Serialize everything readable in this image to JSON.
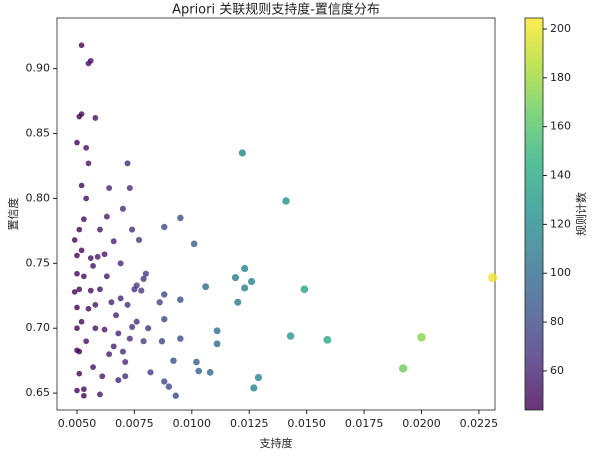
{
  "chart_data": {
    "type": "scatter",
    "title": "Apriori 关联规则支持度-置信度分布",
    "x_label": "支持度",
    "y_label": "置信度",
    "colorbar_label": "规则计数",
    "colormap": "viridis",
    "xlim": [
      0.00413,
      0.0232
    ],
    "ylim": [
      0.637,
      0.939
    ],
    "clim": [
      44,
      204.5
    ],
    "xticks": [
      {
        "value": 0.005,
        "label": "0.0050"
      },
      {
        "value": 0.0075,
        "label": "0.0075"
      },
      {
        "value": 0.01,
        "label": "0.0100"
      },
      {
        "value": 0.0125,
        "label": "0.0125"
      },
      {
        "value": 0.015,
        "label": "0.0150"
      },
      {
        "value": 0.0175,
        "label": "0.0175"
      },
      {
        "value": 0.02,
        "label": "0.0200"
      },
      {
        "value": 0.0225,
        "label": "0.0225"
      }
    ],
    "yticks": [
      {
        "value": 0.65,
        "label": "0.65"
      },
      {
        "value": 0.7,
        "label": "0.70"
      },
      {
        "value": 0.75,
        "label": "0.75"
      },
      {
        "value": 0.8,
        "label": "0.80"
      },
      {
        "value": 0.85,
        "label": "0.85"
      },
      {
        "value": 0.9,
        "label": "0.90"
      }
    ],
    "cticks": [
      60,
      80,
      100,
      120,
      140,
      160,
      180,
      200
    ],
    "x": [
      0.0231,
      0.02,
      0.0192,
      0.0159,
      0.0149,
      0.0143,
      0.0141,
      0.0129,
      0.0127,
      0.0126,
      0.0123,
      0.0122,
      0.0123,
      0.012,
      0.0119,
      0.0111,
      0.0111,
      0.0108,
      0.0106,
      0.0103,
      0.0102,
      0.0101,
      0.0095,
      0.0095,
      0.0095,
      0.0093,
      0.0092,
      0.009,
      0.0088,
      0.0088,
      0.0088,
      0.0087,
      0.0088,
      0.0086,
      0.0082,
      0.008,
      0.0079,
      0.0079,
      0.0078,
      0.0077,
      0.0076,
      0.0076,
      0.0075,
      0.0074,
      0.0073,
      0.0073,
      0.0072,
      0.0072,
      0.0071,
      0.007,
      0.007,
      0.0069,
      0.0068,
      0.0068,
      0.0067,
      0.0066,
      0.0065,
      0.0064,
      0.0064,
      0.0063,
      0.0063,
      0.0062,
      0.0061,
      0.006,
      0.006,
      0.0059,
      0.0058,
      0.0058,
      0.0057,
      0.0057,
      0.0056,
      0.0056,
      0.0056,
      0.0055,
      0.0055,
      0.0055,
      0.0054,
      0.0054,
      0.0054,
      0.0053,
      0.0053,
      0.0053,
      0.0052,
      0.0052,
      0.0052,
      0.0052,
      0.0052,
      0.0051,
      0.0051,
      0.0051,
      0.0051,
      0.0051,
      0.005,
      0.005,
      0.005,
      0.005,
      0.005,
      0.005,
      0.005,
      0.0049,
      0.0049,
      0.0053,
      0.0058,
      0.006,
      0.0062,
      0.0066,
      0.0069,
      0.0071,
      0.0074,
      0.0081
    ],
    "y": [
      0.739,
      0.693,
      0.669,
      0.691,
      0.73,
      0.694,
      0.798,
      0.662,
      0.654,
      0.736,
      0.746,
      0.835,
      0.731,
      0.72,
      0.739,
      0.698,
      0.688,
      0.666,
      0.732,
      0.667,
      0.674,
      0.765,
      0.785,
      0.722,
      0.692,
      0.648,
      0.675,
      0.655,
      0.778,
      0.726,
      0.707,
      0.69,
      0.659,
      0.72,
      0.666,
      0.742,
      0.738,
      0.69,
      0.729,
      0.768,
      0.733,
      0.705,
      0.73,
      0.776,
      0.808,
      0.692,
      0.827,
      0.718,
      0.674,
      0.792,
      0.682,
      0.75,
      0.696,
      0.66,
      0.71,
      0.767,
      0.72,
      0.808,
      0.68,
      0.786,
      0.74,
      0.699,
      0.663,
      0.776,
      0.73,
      0.755,
      0.862,
      0.7,
      0.748,
      0.67,
      0.906,
      0.754,
      0.729,
      0.904,
      0.827,
      0.715,
      0.839,
      0.8,
      0.69,
      0.784,
      0.74,
      0.653,
      0.918,
      0.865,
      0.81,
      0.76,
      0.705,
      0.863,
      0.776,
      0.73,
      0.682,
      0.665,
      0.843,
      0.756,
      0.742,
      0.716,
      0.7,
      0.683,
      0.652,
      0.768,
      0.728,
      0.648,
      0.718,
      0.649,
      0.757,
      0.686,
      0.723,
      0.663,
      0.701,
      0.7
    ],
    "c": [
      201,
      175,
      168,
      140,
      135,
      130,
      125,
      118,
      115,
      115,
      115,
      115,
      112,
      108,
      110,
      100,
      98,
      95,
      98,
      92,
      92,
      90,
      85,
      85,
      82,
      80,
      82,
      80,
      80,
      78,
      78,
      76,
      78,
      75,
      72,
      72,
      70,
      70,
      70,
      68,
      68,
      67,
      66,
      66,
      66,
      65,
      62,
      64,
      62,
      63,
      62,
      62,
      60,
      60,
      60,
      58,
      58,
      58,
      56,
      56,
      56,
      55,
      55,
      54,
      54,
      53,
      52,
      52,
      52,
      51,
      50,
      50,
      50,
      50,
      50,
      49,
      49,
      49,
      49,
      48,
      48,
      48,
      47,
      47,
      47,
      47,
      47,
      46,
      46,
      46,
      46,
      46,
      45,
      45,
      45,
      45,
      45,
      45,
      45,
      45,
      45,
      46,
      51,
      53,
      55,
      58,
      61,
      63,
      65,
      70
    ]
  }
}
